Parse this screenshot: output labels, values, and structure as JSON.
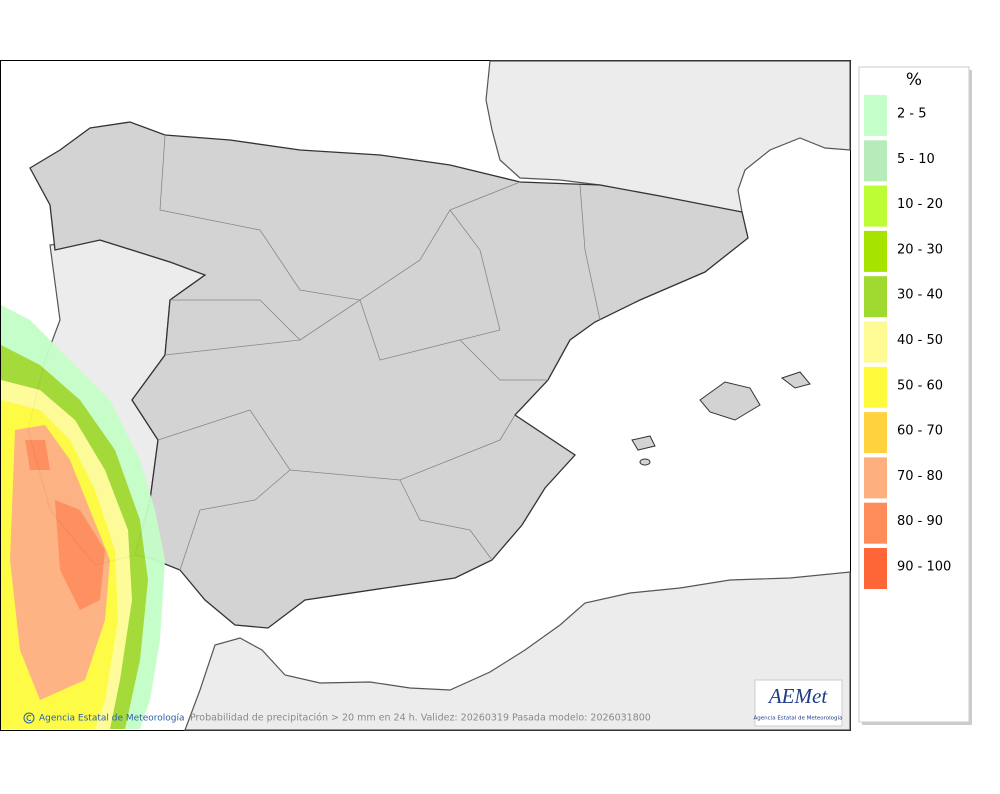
{
  "map": {
    "legend": {
      "title": "%",
      "items": [
        {
          "label": "2 - 5",
          "color": "#c4fec8"
        },
        {
          "label": "5 - 10",
          "color": "#b5ecb9"
        },
        {
          "label": "10 - 20",
          "color": "#bdfd36"
        },
        {
          "label": "20 - 30",
          "color": "#a6e400"
        },
        {
          "label": "30 - 40",
          "color": "#a0d92f"
        },
        {
          "label": "40 - 50",
          "color": "#fefb95"
        },
        {
          "label": "50 - 60",
          "color": "#fefb3d"
        },
        {
          "label": "60 - 70",
          "color": "#ffd23e"
        },
        {
          "label": "70 - 80",
          "color": "#fdaf7e"
        },
        {
          "label": "80 - 90",
          "color": "#fe8b5a"
        },
        {
          "label": "90 - 100",
          "color": "#fe6637"
        }
      ]
    },
    "credit": "Agencia Estatal de Meteorología",
    "caption": "Probabilidad de precipitación > 20 mm en 24 h. Validez: 20260319 Pasada modelo: 2026031800",
    "logo": {
      "name": "AEMet",
      "subtitle": "Agencia Estatal de Meteorología"
    }
  }
}
